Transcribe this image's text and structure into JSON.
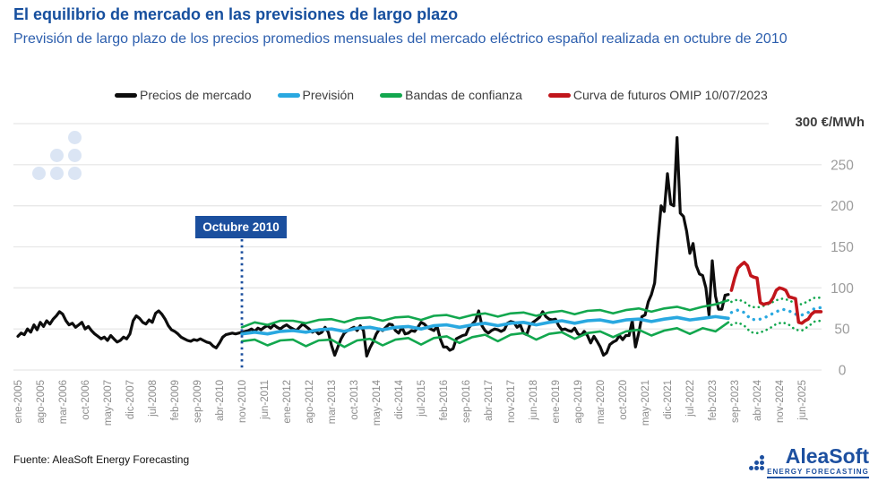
{
  "header": {
    "title": "El equilibrio de mercado en las previsiones de largo plazo",
    "subtitle": "Previsión de largo plazo de los precios promedios mensuales del mercado eléctrico español realizada en octubre de 2010"
  },
  "legend": {
    "items": [
      {
        "label": "Precios de mercado",
        "color": "#0d0d0d"
      },
      {
        "label": "Previsión",
        "color": "#29a8e0"
      },
      {
        "label": "Bandas de confianza",
        "color": "#12a74e"
      },
      {
        "label": "Curva de futuros OMIP 10/07/2023",
        "color": "#c1151b"
      }
    ]
  },
  "annotation": {
    "label": "Octubre 2010",
    "month_index": 70,
    "bg": "#1b4f9e"
  },
  "y_axis": {
    "unit_label": "300 €/MWh",
    "max": 300,
    "min": 0,
    "ticks": [
      250,
      200,
      150,
      100,
      50,
      0
    ]
  },
  "x_axis": {
    "tick_month_step": 7,
    "ticks": [
      "ene-2005",
      "ago-2005",
      "mar-2006",
      "oct-2006",
      "may-2007",
      "dic-2007",
      "jul-2008",
      "feb-2009",
      "sep-2009",
      "abr-2010",
      "nov-2010",
      "jun-2011",
      "ene-2012",
      "ago-2012",
      "mar-2013",
      "oct-2013",
      "may-2014",
      "dic-2014",
      "jul-2015",
      "feb-2016",
      "sep-2016",
      "abr-2017",
      "nov-2017",
      "jun-2018",
      "ene-2019",
      "ago-2019",
      "mar-2020",
      "oct-2020",
      "may-2021",
      "dic-2021",
      "jul-2022",
      "feb-2023",
      "sep-2023",
      "abr-2024",
      "nov-2024",
      "jun-2025"
    ]
  },
  "footer": {
    "source": "Fuente: AleaSoft Energy Forecasting"
  },
  "logo": {
    "name": "AleaSoft",
    "tagline": "ENERGY FORECASTING"
  },
  "chart_data": {
    "type": "line",
    "title": "El equilibrio de mercado en las previsiones de largo plazo",
    "x_unit": "months since ene-2005 (values in € per MWh)",
    "ylim": [
      0,
      300
    ],
    "grid": true,
    "legend_position": "top",
    "series": [
      {
        "name": "Precios de mercado",
        "color": "#0d0d0d",
        "style": "solid",
        "width": 3.2,
        "monthly_start_index": 0,
        "values": [
          41,
          45,
          43,
          50,
          46,
          55,
          49,
          58,
          53,
          60,
          56,
          62,
          66,
          71,
          68,
          60,
          55,
          57,
          52,
          55,
          58,
          50,
          53,
          48,
          44,
          41,
          38,
          40,
          36,
          42,
          38,
          34,
          36,
          40,
          38,
          44,
          60,
          66,
          63,
          58,
          56,
          61,
          58,
          69,
          72,
          68,
          62,
          54,
          49,
          47,
          44,
          40,
          38,
          36,
          35,
          37,
          36,
          38,
          36,
          34,
          33,
          29,
          27,
          33,
          40,
          43,
          44,
          45,
          44,
          45,
          46,
          47,
          48,
          50,
          47,
          51,
          49,
          52,
          54,
          51,
          55,
          52,
          50,
          53,
          55,
          52,
          50,
          48,
          52,
          56,
          53,
          50,
          46,
          48,
          44,
          46,
          52,
          46,
          30,
          18,
          28,
          38,
          45,
          48,
          50,
          52,
          48,
          54,
          48,
          17,
          27,
          34,
          44,
          50,
          48,
          52,
          56,
          55,
          48,
          45,
          52,
          44,
          45,
          48,
          47,
          52,
          58,
          56,
          52,
          50,
          48,
          53,
          38,
          28,
          28,
          24,
          26,
          38,
          40,
          42,
          43,
          52,
          56,
          60,
          72,
          54,
          48,
          45,
          48,
          50,
          49,
          47,
          49,
          57,
          59,
          58,
          52,
          55,
          45,
          43,
          55,
          58,
          61,
          64,
          71,
          65,
          62,
          61,
          62,
          54,
          49,
          50,
          48,
          47,
          51,
          44,
          42,
          47,
          42,
          33,
          41,
          35,
          28,
          18,
          21,
          31,
          34,
          36,
          42,
          37,
          42,
          42,
          60,
          28,
          45,
          65,
          67,
          83,
          92,
          106,
          156,
          200,
          193,
          239,
          202,
          200,
          283,
          191,
          187,
          169,
          142,
          154,
          127,
          117,
          115,
          100,
          67,
          133,
          90,
          74,
          74,
          91,
          92
        ]
      },
      {
        "name": "Previsión",
        "color": "#29a8e0",
        "style": "solid",
        "width": 3.6,
        "points": [
          [
            70,
            44
          ],
          [
            74,
            46
          ],
          [
            78,
            44
          ],
          [
            82,
            47
          ],
          [
            86,
            48
          ],
          [
            90,
            46
          ],
          [
            94,
            49
          ],
          [
            98,
            50
          ],
          [
            102,
            47
          ],
          [
            106,
            51
          ],
          [
            110,
            52
          ],
          [
            114,
            49
          ],
          [
            118,
            52
          ],
          [
            122,
            53
          ],
          [
            126,
            50
          ],
          [
            130,
            54
          ],
          [
            134,
            55
          ],
          [
            138,
            52
          ],
          [
            142,
            55
          ],
          [
            146,
            57
          ],
          [
            150,
            54
          ],
          [
            154,
            57
          ],
          [
            158,
            58
          ],
          [
            162,
            55
          ],
          [
            166,
            58
          ],
          [
            170,
            60
          ],
          [
            174,
            57
          ],
          [
            178,
            60
          ],
          [
            182,
            61
          ],
          [
            186,
            58
          ],
          [
            190,
            61
          ],
          [
            194,
            62
          ],
          [
            198,
            59
          ],
          [
            202,
            62
          ],
          [
            206,
            64
          ],
          [
            210,
            61
          ],
          [
            214,
            63
          ],
          [
            218,
            65
          ],
          [
            222,
            63
          ]
        ]
      },
      {
        "name": "Banda de confianza superior",
        "color": "#12a74e",
        "style": "solid",
        "width": 2.6,
        "points": [
          [
            70,
            52
          ],
          [
            74,
            58
          ],
          [
            78,
            55
          ],
          [
            82,
            60
          ],
          [
            86,
            60
          ],
          [
            90,
            57
          ],
          [
            94,
            61
          ],
          [
            98,
            62
          ],
          [
            102,
            58
          ],
          [
            106,
            63
          ],
          [
            110,
            64
          ],
          [
            114,
            60
          ],
          [
            118,
            64
          ],
          [
            122,
            65
          ],
          [
            126,
            61
          ],
          [
            130,
            66
          ],
          [
            134,
            67
          ],
          [
            138,
            63
          ],
          [
            142,
            67
          ],
          [
            146,
            69
          ],
          [
            150,
            65
          ],
          [
            154,
            69
          ],
          [
            158,
            70
          ],
          [
            162,
            66
          ],
          [
            166,
            70
          ],
          [
            170,
            72
          ],
          [
            174,
            68
          ],
          [
            178,
            72
          ],
          [
            182,
            73
          ],
          [
            186,
            69
          ],
          [
            190,
            73
          ],
          [
            194,
            75
          ],
          [
            198,
            71
          ],
          [
            202,
            75
          ],
          [
            206,
            77
          ],
          [
            210,
            73
          ],
          [
            214,
            77
          ],
          [
            218,
            80
          ],
          [
            222,
            85
          ]
        ]
      },
      {
        "name": "Banda de confianza inferior",
        "color": "#12a74e",
        "style": "solid",
        "width": 2.6,
        "points": [
          [
            70,
            35
          ],
          [
            74,
            37
          ],
          [
            78,
            30
          ],
          [
            82,
            36
          ],
          [
            86,
            37
          ],
          [
            90,
            29
          ],
          [
            94,
            36
          ],
          [
            98,
            37
          ],
          [
            102,
            28
          ],
          [
            106,
            36
          ],
          [
            110,
            38
          ],
          [
            114,
            30
          ],
          [
            118,
            37
          ],
          [
            122,
            39
          ],
          [
            126,
            31
          ],
          [
            130,
            39
          ],
          [
            134,
            41
          ],
          [
            138,
            33
          ],
          [
            142,
            40
          ],
          [
            146,
            43
          ],
          [
            150,
            35
          ],
          [
            154,
            43
          ],
          [
            158,
            45
          ],
          [
            162,
            37
          ],
          [
            166,
            44
          ],
          [
            170,
            46
          ],
          [
            174,
            38
          ],
          [
            178,
            45
          ],
          [
            182,
            47
          ],
          [
            186,
            40
          ],
          [
            190,
            47
          ],
          [
            194,
            49
          ],
          [
            198,
            42
          ],
          [
            202,
            48
          ],
          [
            206,
            51
          ],
          [
            210,
            44
          ],
          [
            214,
            51
          ],
          [
            218,
            47
          ],
          [
            222,
            58
          ]
        ]
      },
      {
        "name": "Previsión (continuación punteada)",
        "color": "#29a8e0",
        "style": "dotted",
        "width": 3.4,
        "points": [
          [
            223,
            70
          ],
          [
            225,
            73
          ],
          [
            227,
            70
          ],
          [
            229,
            62
          ],
          [
            231,
            61
          ],
          [
            233,
            63
          ],
          [
            235,
            67
          ],
          [
            237,
            71
          ],
          [
            239,
            74
          ],
          [
            241,
            72
          ],
          [
            243,
            68
          ],
          [
            245,
            67
          ],
          [
            247,
            70
          ],
          [
            249,
            75
          ],
          [
            251,
            76
          ]
        ]
      },
      {
        "name": "Banda superior (continuación punteada)",
        "color": "#12a74e",
        "style": "dotted",
        "width": 2.6,
        "points": [
          [
            223,
            83
          ],
          [
            225,
            86
          ],
          [
            227,
            83
          ],
          [
            229,
            77
          ],
          [
            231,
            76
          ],
          [
            233,
            78
          ],
          [
            235,
            81
          ],
          [
            237,
            85
          ],
          [
            239,
            87
          ],
          [
            241,
            85
          ],
          [
            243,
            81
          ],
          [
            245,
            80
          ],
          [
            247,
            84
          ],
          [
            249,
            88
          ],
          [
            251,
            88
          ]
        ]
      },
      {
        "name": "Banda inferior (continuación punteada)",
        "color": "#12a74e",
        "style": "dotted",
        "width": 2.6,
        "points": [
          [
            223,
            55
          ],
          [
            225,
            58
          ],
          [
            227,
            54
          ],
          [
            229,
            46
          ],
          [
            231,
            45
          ],
          [
            233,
            47
          ],
          [
            235,
            51
          ],
          [
            237,
            56
          ],
          [
            239,
            58
          ],
          [
            241,
            55
          ],
          [
            243,
            49
          ],
          [
            245,
            48
          ],
          [
            247,
            53
          ],
          [
            249,
            59
          ],
          [
            251,
            60
          ]
        ]
      },
      {
        "name": "Curva de futuros OMIP 10/07/2023",
        "color": "#c1151b",
        "style": "solid",
        "width": 3.6,
        "points": [
          [
            223,
            97
          ],
          [
            224,
            112
          ],
          [
            225,
            124
          ],
          [
            226,
            128
          ],
          [
            227,
            131
          ],
          [
            228,
            127
          ],
          [
            229,
            115
          ],
          [
            230,
            113
          ],
          [
            231,
            112
          ],
          [
            232,
            82
          ],
          [
            233,
            80
          ],
          [
            234,
            81
          ],
          [
            235,
            82
          ],
          [
            236,
            88
          ],
          [
            237,
            97
          ],
          [
            238,
            100
          ],
          [
            239,
            99
          ],
          [
            240,
            97
          ],
          [
            241,
            89
          ],
          [
            242,
            88
          ],
          [
            243,
            87
          ],
          [
            244,
            58
          ],
          [
            245,
            57
          ],
          [
            246,
            60
          ],
          [
            247,
            62
          ],
          [
            248,
            68
          ],
          [
            249,
            71
          ],
          [
            250,
            71
          ],
          [
            251,
            71
          ]
        ]
      }
    ]
  }
}
